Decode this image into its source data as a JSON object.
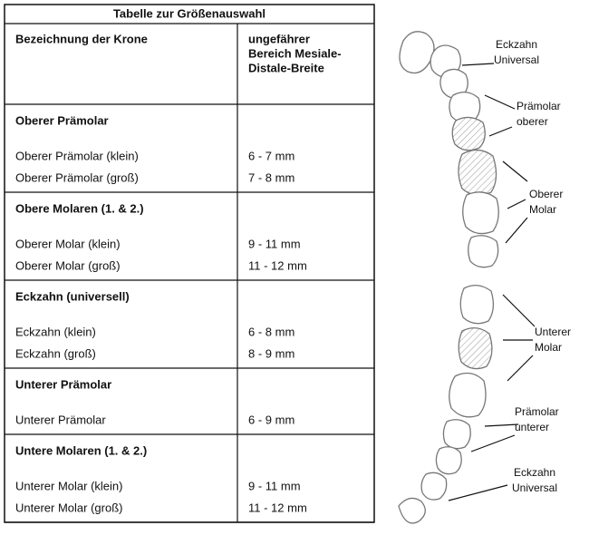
{
  "table": {
    "title": "Tabelle zur Größenauswahl",
    "headers": [
      [
        "Bezeichnung der Krone"
      ],
      [
        "ungefährer",
        "Bereich Mesiale-",
        "Distale-Breite"
      ]
    ],
    "groups": [
      {
        "name": "Oberer Prämolar",
        "rows": [
          [
            "Oberer Prämolar (klein)",
            "6 - 7 mm"
          ],
          [
            "Oberer Prämolar (groß)",
            "7 - 8 mm"
          ]
        ]
      },
      {
        "name": "Obere Molaren (1. & 2.)",
        "rows": [
          [
            "Oberer Molar (klein)",
            "9 - 11 mm"
          ],
          [
            "Oberer Molar (groß)",
            "11 - 12 mm"
          ]
        ]
      },
      {
        "name": "Eckzahn (universell)",
        "rows": [
          [
            "Eckzahn (klein)",
            "6 - 8 mm"
          ],
          [
            "Eckzahn (groß)",
            "8 - 9 mm"
          ]
        ]
      },
      {
        "name": "Unterer Prämolar",
        "rows": [
          [
            "Unterer Prämolar",
            "6 - 9 mm"
          ]
        ]
      },
      {
        "name": "Untere Molaren (1. & 2.)",
        "rows": [
          [
            "Unterer Molar (klein)",
            "9 - 11 mm"
          ],
          [
            "Unterer Molar (groß)",
            "11 - 12 mm"
          ]
        ]
      }
    ]
  },
  "diagram": {
    "labels": [
      [
        "Eckzahn",
        "Universal"
      ],
      [
        "Prämolar",
        "oberer"
      ],
      [
        "Oberer",
        "Molar"
      ],
      [
        "Unterer",
        "Molar"
      ],
      [
        "Prämolar",
        "unterer"
      ],
      [
        "Eckzahn",
        "Universal"
      ]
    ]
  }
}
